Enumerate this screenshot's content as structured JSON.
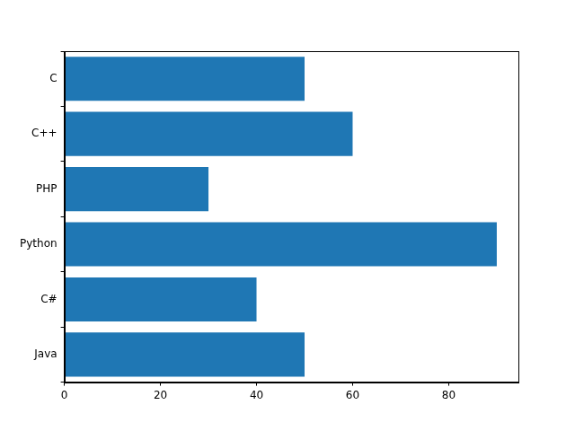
{
  "chart_data": {
    "type": "bar",
    "orientation": "horizontal",
    "categories": [
      "C",
      "C++",
      "PHP",
      "Python",
      "C#",
      "Java"
    ],
    "values": [
      50,
      60,
      30,
      90,
      40,
      50
    ],
    "color": "#1f77b4",
    "xlim": [
      0,
      94.5
    ],
    "xticks": [
      0,
      20,
      40,
      60,
      80
    ],
    "grid": false
  }
}
